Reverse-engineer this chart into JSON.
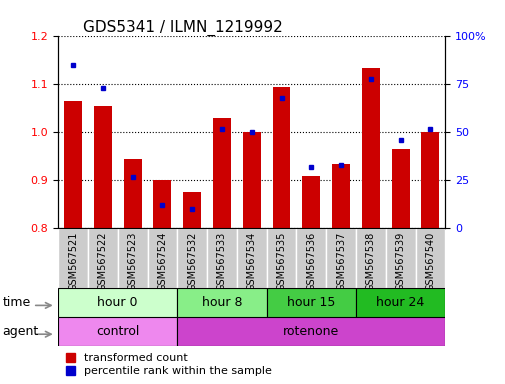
{
  "title": "GDS5341 / ILMN_1219992",
  "samples": [
    "GSM567521",
    "GSM567522",
    "GSM567523",
    "GSM567524",
    "GSM567532",
    "GSM567533",
    "GSM567534",
    "GSM567535",
    "GSM567536",
    "GSM567537",
    "GSM567538",
    "GSM567539",
    "GSM567540"
  ],
  "transformed_count": [
    1.065,
    1.055,
    0.945,
    0.9,
    0.875,
    1.03,
    1.0,
    1.095,
    0.91,
    0.935,
    1.135,
    0.965,
    1.0
  ],
  "percentile_rank": [
    85,
    73,
    27,
    12,
    10,
    52,
    50,
    68,
    32,
    33,
    78,
    46,
    52
  ],
  "ylim_left": [
    0.8,
    1.2
  ],
  "ylim_right": [
    0,
    100
  ],
  "yticks_left": [
    0.8,
    0.9,
    1.0,
    1.1,
    1.2
  ],
  "yticks_right": [
    0,
    25,
    50,
    75,
    100
  ],
  "bar_color": "#cc0000",
  "dot_color": "#0000cc",
  "bar_bottom": 0.8,
  "time_groups": [
    {
      "label": "hour 0",
      "start": 0,
      "end": 4,
      "color": "#ccffcc"
    },
    {
      "label": "hour 8",
      "start": 4,
      "end": 7,
      "color": "#88ee88"
    },
    {
      "label": "hour 15",
      "start": 7,
      "end": 10,
      "color": "#44cc44"
    },
    {
      "label": "hour 24",
      "start": 10,
      "end": 13,
      "color": "#22bb22"
    }
  ],
  "agent_groups": [
    {
      "label": "control",
      "start": 0,
      "end": 4,
      "color": "#ee88ee"
    },
    {
      "label": "rotenone",
      "start": 4,
      "end": 13,
      "color": "#cc44cc"
    }
  ],
  "legend_bar_label": "transformed count",
  "legend_dot_label": "percentile rank within the sample",
  "time_label": "time",
  "agent_label": "agent",
  "sample_bg_color": "#cccccc",
  "title_fontsize": 11,
  "tick_fontsize": 8,
  "row_label_fontsize": 9,
  "legend_fontsize": 8
}
